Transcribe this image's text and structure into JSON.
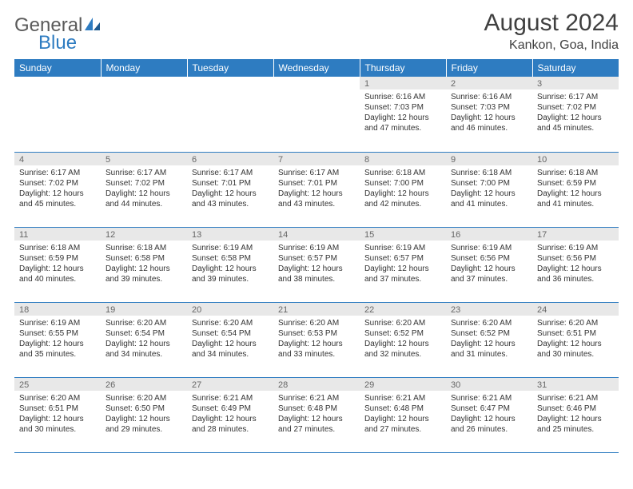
{
  "brand": {
    "word1": "General",
    "word2": "Blue"
  },
  "title": "August 2024",
  "location": "Kankon, Goa, India",
  "colors": {
    "primary": "#2e7cc1",
    "headerText": "#ffffff",
    "dayStripBg": "#e8e8e8",
    "bodyText": "#333333",
    "titleText": "#404040",
    "background": "#ffffff"
  },
  "dayNames": [
    "Sunday",
    "Monday",
    "Tuesday",
    "Wednesday",
    "Thursday",
    "Friday",
    "Saturday"
  ],
  "startWeekday": 4,
  "days": [
    {
      "n": 1,
      "sunrise": "6:16 AM",
      "sunset": "7:03 PM",
      "dh": 12,
      "dm": 47
    },
    {
      "n": 2,
      "sunrise": "6:16 AM",
      "sunset": "7:03 PM",
      "dh": 12,
      "dm": 46
    },
    {
      "n": 3,
      "sunrise": "6:17 AM",
      "sunset": "7:02 PM",
      "dh": 12,
      "dm": 45
    },
    {
      "n": 4,
      "sunrise": "6:17 AM",
      "sunset": "7:02 PM",
      "dh": 12,
      "dm": 45
    },
    {
      "n": 5,
      "sunrise": "6:17 AM",
      "sunset": "7:02 PM",
      "dh": 12,
      "dm": 44
    },
    {
      "n": 6,
      "sunrise": "6:17 AM",
      "sunset": "7:01 PM",
      "dh": 12,
      "dm": 43
    },
    {
      "n": 7,
      "sunrise": "6:17 AM",
      "sunset": "7:01 PM",
      "dh": 12,
      "dm": 43
    },
    {
      "n": 8,
      "sunrise": "6:18 AM",
      "sunset": "7:00 PM",
      "dh": 12,
      "dm": 42
    },
    {
      "n": 9,
      "sunrise": "6:18 AM",
      "sunset": "7:00 PM",
      "dh": 12,
      "dm": 41
    },
    {
      "n": 10,
      "sunrise": "6:18 AM",
      "sunset": "6:59 PM",
      "dh": 12,
      "dm": 41
    },
    {
      "n": 11,
      "sunrise": "6:18 AM",
      "sunset": "6:59 PM",
      "dh": 12,
      "dm": 40
    },
    {
      "n": 12,
      "sunrise": "6:18 AM",
      "sunset": "6:58 PM",
      "dh": 12,
      "dm": 39
    },
    {
      "n": 13,
      "sunrise": "6:19 AM",
      "sunset": "6:58 PM",
      "dh": 12,
      "dm": 39
    },
    {
      "n": 14,
      "sunrise": "6:19 AM",
      "sunset": "6:57 PM",
      "dh": 12,
      "dm": 38
    },
    {
      "n": 15,
      "sunrise": "6:19 AM",
      "sunset": "6:57 PM",
      "dh": 12,
      "dm": 37
    },
    {
      "n": 16,
      "sunrise": "6:19 AM",
      "sunset": "6:56 PM",
      "dh": 12,
      "dm": 37
    },
    {
      "n": 17,
      "sunrise": "6:19 AM",
      "sunset": "6:56 PM",
      "dh": 12,
      "dm": 36
    },
    {
      "n": 18,
      "sunrise": "6:19 AM",
      "sunset": "6:55 PM",
      "dh": 12,
      "dm": 35
    },
    {
      "n": 19,
      "sunrise": "6:20 AM",
      "sunset": "6:54 PM",
      "dh": 12,
      "dm": 34
    },
    {
      "n": 20,
      "sunrise": "6:20 AM",
      "sunset": "6:54 PM",
      "dh": 12,
      "dm": 34
    },
    {
      "n": 21,
      "sunrise": "6:20 AM",
      "sunset": "6:53 PM",
      "dh": 12,
      "dm": 33
    },
    {
      "n": 22,
      "sunrise": "6:20 AM",
      "sunset": "6:52 PM",
      "dh": 12,
      "dm": 32
    },
    {
      "n": 23,
      "sunrise": "6:20 AM",
      "sunset": "6:52 PM",
      "dh": 12,
      "dm": 31
    },
    {
      "n": 24,
      "sunrise": "6:20 AM",
      "sunset": "6:51 PM",
      "dh": 12,
      "dm": 30
    },
    {
      "n": 25,
      "sunrise": "6:20 AM",
      "sunset": "6:51 PM",
      "dh": 12,
      "dm": 30
    },
    {
      "n": 26,
      "sunrise": "6:20 AM",
      "sunset": "6:50 PM",
      "dh": 12,
      "dm": 29
    },
    {
      "n": 27,
      "sunrise": "6:21 AM",
      "sunset": "6:49 PM",
      "dh": 12,
      "dm": 28
    },
    {
      "n": 28,
      "sunrise": "6:21 AM",
      "sunset": "6:48 PM",
      "dh": 12,
      "dm": 27
    },
    {
      "n": 29,
      "sunrise": "6:21 AM",
      "sunset": "6:48 PM",
      "dh": 12,
      "dm": 27
    },
    {
      "n": 30,
      "sunrise": "6:21 AM",
      "sunset": "6:47 PM",
      "dh": 12,
      "dm": 26
    },
    {
      "n": 31,
      "sunrise": "6:21 AM",
      "sunset": "6:46 PM",
      "dh": 12,
      "dm": 25
    }
  ],
  "labels": {
    "sunrise": "Sunrise:",
    "sunset": "Sunset:",
    "daylight": "Daylight:",
    "hours": "hours",
    "and": "and",
    "minutes": "minutes."
  }
}
